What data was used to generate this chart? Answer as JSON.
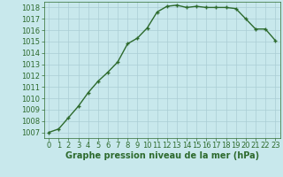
{
  "x": [
    0,
    1,
    2,
    3,
    4,
    5,
    6,
    7,
    8,
    9,
    10,
    11,
    12,
    13,
    14,
    15,
    16,
    17,
    18,
    19,
    20,
    21,
    22,
    23
  ],
  "y": [
    1007.0,
    1007.3,
    1008.3,
    1009.3,
    1010.5,
    1011.5,
    1012.3,
    1013.2,
    1014.8,
    1015.3,
    1016.2,
    1017.6,
    1018.1,
    1018.2,
    1018.0,
    1018.1,
    1018.0,
    1018.0,
    1018.0,
    1017.9,
    1017.0,
    1016.1,
    1016.1,
    1015.1
  ],
  "line_color": "#2d6a2d",
  "marker": "+",
  "bg_color": "#c8e8ec",
  "grid_color": "#aacdd4",
  "xlabel": "Graphe pression niveau de la mer (hPa)",
  "xlabel_color": "#2d6a2d",
  "tick_color": "#2d6a2d",
  "ylim_min": 1006.5,
  "ylim_max": 1018.5,
  "yticks": [
    1007,
    1008,
    1009,
    1010,
    1011,
    1012,
    1013,
    1014,
    1015,
    1016,
    1017,
    1018
  ],
  "xticks": [
    0,
    1,
    2,
    3,
    4,
    5,
    6,
    7,
    8,
    9,
    10,
    11,
    12,
    13,
    14,
    15,
    16,
    17,
    18,
    19,
    20,
    21,
    22,
    23
  ],
  "linewidth": 1.0,
  "markersize": 3.5,
  "tick_fontsize": 6.0,
  "xlabel_fontsize": 7.0
}
